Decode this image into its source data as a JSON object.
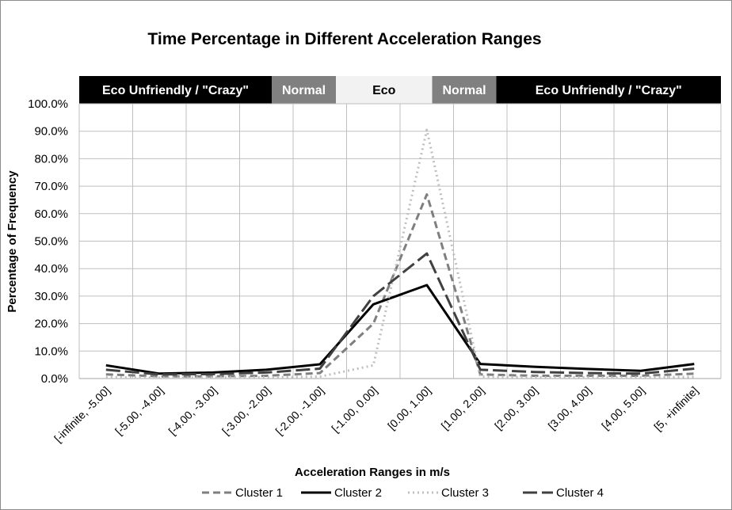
{
  "chart_data": {
    "type": "line",
    "title": "Time Percentage in Different Acceleration Ranges",
    "xlabel": "Acceleration Ranges in m/s",
    "ylabel": "Percentage of Frequency",
    "ylim": [
      0,
      100
    ],
    "yticks": [
      "0.0%",
      "10.0%",
      "20.0%",
      "30.0%",
      "40.0%",
      "50.0%",
      "60.0%",
      "70.0%",
      "80.0%",
      "90.0%",
      "100.0%"
    ],
    "grid": true,
    "legend_position": "bottom",
    "categories": [
      "[-infinite, -5.00]",
      "[-5.00, -4.00]",
      "[-4.00, -3.00]",
      "[-3.00, -2.00]",
      "[-2.00, -1.00]",
      "[-1.00, 0.00]",
      "[0.00, 1.00]",
      "[1.00, 2.00]",
      "[2.00, 3.00]",
      "[3.00, 4.00]",
      "[4.00, 5.00]",
      "[5, +infinite]"
    ],
    "series": [
      {
        "name": "Cluster 1",
        "color": "#7f7f7f",
        "dash": "dash",
        "values": [
          1.5,
          0.8,
          0.8,
          1.0,
          2.0,
          20.0,
          67.0,
          1.5,
          1.0,
          1.0,
          1.0,
          1.8
        ]
      },
      {
        "name": "Cluster 2",
        "color": "#000000",
        "dash": "solid",
        "values": [
          4.8,
          1.8,
          2.2,
          3.2,
          5.2,
          27.0,
          34.0,
          5.3,
          4.3,
          3.5,
          2.8,
          5.3
        ]
      },
      {
        "name": "Cluster 3",
        "color": "#bfbfbf",
        "dash": "dot",
        "values": [
          0.5,
          0.3,
          0.4,
          0.5,
          0.7,
          4.8,
          90.5,
          0.7,
          0.5,
          0.4,
          0.4,
          0.6
        ]
      },
      {
        "name": "Cluster 4",
        "color": "#404040",
        "dash": "longdash",
        "values": [
          3.2,
          1.5,
          1.6,
          2.2,
          3.6,
          30.0,
          45.5,
          3.2,
          2.4,
          2.0,
          1.8,
          3.6
        ]
      }
    ],
    "bands": [
      {
        "label": "Eco Unfriendly / \"Crazy\"",
        "from": 0,
        "to": 3.6,
        "fill": "#000000",
        "text_color": "#ffffff"
      },
      {
        "label": "Normal",
        "from": 3.6,
        "to": 4.8,
        "fill": "#808080",
        "text_color": "#ffffff"
      },
      {
        "label": "Eco",
        "from": 4.8,
        "to": 6.6,
        "fill": "#f2f2f2",
        "text_color": "#000000"
      },
      {
        "label": "Normal",
        "from": 6.6,
        "to": 7.8,
        "fill": "#808080",
        "text_color": "#ffffff"
      },
      {
        "label": "Eco Unfriendly / \"Crazy\"",
        "from": 7.8,
        "to": 12,
        "fill": "#000000",
        "text_color": "#ffffff"
      }
    ]
  }
}
